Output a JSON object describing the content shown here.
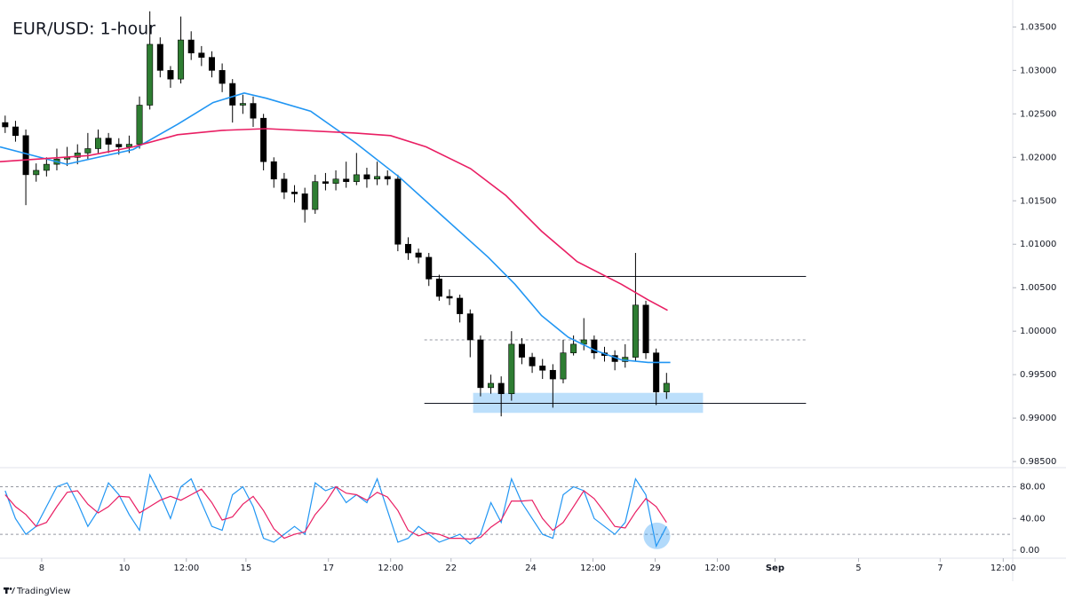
{
  "chart_data": [
    {
      "type": "candlestick",
      "title": "EUR/USD: 1-hour",
      "x": [
        3,
        9,
        15,
        21,
        27,
        33,
        39,
        45,
        51,
        57,
        63,
        69,
        75,
        81,
        87,
        93,
        99,
        105,
        111,
        117,
        123,
        129,
        135,
        141,
        147,
        153,
        159,
        165,
        171,
        177,
        183,
        189,
        195,
        201,
        207,
        213,
        219,
        225,
        231,
        237,
        243,
        249,
        255,
        261,
        267,
        273,
        279,
        285,
        291,
        297,
        303,
        309,
        315,
        321,
        327,
        333,
        339,
        345,
        351,
        357,
        363,
        369,
        375,
        381,
        387
      ],
      "open": [
        1.024,
        1.0235,
        1.0225,
        1.018,
        1.0185,
        1.0192,
        1.0198,
        1.02,
        1.0205,
        1.021,
        1.0222,
        1.0215,
        1.0212,
        1.0215,
        1.026,
        1.033,
        1.03,
        1.029,
        1.0335,
        1.032,
        1.0315,
        1.03,
        1.0285,
        1.026,
        1.0262,
        1.0245,
        1.0195,
        1.0175,
        1.016,
        1.0158,
        1.014,
        1.0172,
        1.017,
        1.0175,
        1.0172,
        1.018,
        1.0175,
        1.0178,
        1.0175,
        1.01,
        1.009,
        1.0085,
        1.006,
        1.004,
        1.0038,
        1.002,
        0.999,
        0.9935,
        0.994,
        0.9928,
        0.9985,
        0.997,
        0.996,
        0.9955,
        0.9945,
        0.9975,
        0.9985,
        0.999,
        0.9975,
        0.9972,
        0.9965,
        0.997,
        1.003,
        0.9975,
        0.993
      ],
      "high": [
        1.0248,
        1.0242,
        1.0232,
        1.0193,
        1.02,
        1.021,
        1.0212,
        1.0215,
        1.0228,
        1.0232,
        1.0228,
        1.0222,
        1.0225,
        1.027,
        1.0368,
        1.0338,
        1.0305,
        1.0362,
        1.0345,
        1.0328,
        1.0322,
        1.0308,
        1.029,
        1.0272,
        1.027,
        1.025,
        1.02,
        1.0182,
        1.0168,
        1.0165,
        1.018,
        1.0182,
        1.0185,
        1.0195,
        1.0205,
        1.0188,
        1.0195,
        1.0185,
        1.018,
        1.0108,
        1.0095,
        1.009,
        1.0065,
        1.0048,
        1.0042,
        1.0025,
        0.9995,
        0.995,
        0.9948,
        1.0,
        0.9992,
        0.9975,
        0.9968,
        0.9962,
        0.999,
        0.9995,
        1.0015,
        0.9995,
        0.9982,
        0.9978,
        0.9985,
        1.009,
        1.0035,
        0.998,
        0.9952
      ],
      "low": [
        1.0228,
        1.0218,
        1.0145,
        1.0172,
        1.0178,
        1.0185,
        1.019,
        1.0192,
        1.0198,
        1.0205,
        1.0205,
        1.0203,
        1.0205,
        1.021,
        1.0255,
        1.0292,
        1.028,
        1.0285,
        1.0312,
        1.0305,
        1.0292,
        1.0275,
        1.024,
        1.025,
        1.0235,
        1.0185,
        1.0165,
        1.0152,
        1.0148,
        1.0125,
        1.0135,
        1.0162,
        1.0162,
        1.0165,
        1.0168,
        1.0165,
        1.0168,
        1.0168,
        1.0092,
        1.0082,
        1.0078,
        1.0052,
        1.0035,
        1.003,
        1.001,
        0.997,
        0.9925,
        0.9928,
        0.9902,
        0.992,
        0.9962,
        0.9952,
        0.9945,
        0.9912,
        0.994,
        0.9972,
        0.9978,
        0.9968,
        0.9965,
        0.9955,
        0.9958,
        0.9965,
        0.9968,
        0.9915,
        0.9922
      ],
      "close": [
        1.0235,
        1.0225,
        1.018,
        1.0185,
        1.0192,
        1.0198,
        1.02,
        1.0205,
        1.021,
        1.0222,
        1.0215,
        1.0212,
        1.0215,
        1.026,
        1.033,
        1.03,
        1.029,
        1.0335,
        1.032,
        1.0315,
        1.03,
        1.0285,
        1.026,
        1.0262,
        1.0245,
        1.0195,
        1.0175,
        1.016,
        1.0158,
        1.014,
        1.0172,
        1.017,
        1.0175,
        1.0172,
        1.018,
        1.0175,
        1.0178,
        1.0175,
        1.01,
        1.009,
        1.0085,
        1.006,
        1.004,
        1.0038,
        1.002,
        0.999,
        0.9935,
        0.994,
        0.9928,
        0.9985,
        0.997,
        0.996,
        0.9955,
        0.9945,
        0.9975,
        0.9985,
        0.999,
        0.9975,
        0.9972,
        0.9965,
        0.997,
        1.003,
        0.9975,
        0.993,
        0.994
      ],
      "up_color": "#2e7d32",
      "down_color": "#000000",
      "ma": [
        {
          "color": "#2196f3",
          "x": [
            0,
            38.7,
            77.3,
            103.1,
            123.7,
            141.8,
            154.6,
            180.4,
            206.2,
            232,
            257.7,
            283.5,
            299,
            314.4,
            329.9,
            345.4,
            360.8,
            376.3,
            389.2
          ],
          "values": [
            1.0212,
            1.0192,
            1.0209,
            1.0238,
            1.0263,
            1.0274,
            1.0268,
            1.0253,
            1.0217,
            1.0177,
            1.0131,
            1.0085,
            1.0054,
            1.0018,
            0.9993,
            0.9978,
            0.9967,
            0.9964,
            0.9964
          ]
        },
        {
          "color": "#e91e63",
          "x": [
            0,
            51.5,
            77.3,
            103.1,
            128.9,
            154.6,
            206.2,
            226.8,
            247.4,
            273.2,
            293.8,
            314.4,
            335.1,
            360.8,
            376.3,
            387.6
          ],
          "values": [
            1.0195,
            1.0202,
            1.0212,
            1.0226,
            1.0231,
            1.0233,
            1.0228,
            1.0225,
            1.0212,
            1.0187,
            1.0156,
            1.0115,
            1.008,
            1.0054,
            1.0036,
            1.0024
          ]
        }
      ],
      "levels": [
        {
          "value": 1.0063,
          "x": [
            247.4,
            468
          ],
          "style": "solid"
        },
        {
          "value": 0.999,
          "x": [
            246.4,
            468
          ],
          "style": "dashed"
        },
        {
          "value": 0.9917,
          "x": [
            246.4,
            468
          ],
          "style": "solid"
        }
      ],
      "zone": {
        "y": [
          0.9906,
          0.9929
        ],
        "x": [
          274.7,
          408.2
        ],
        "color": "#90caf9"
      },
      "xlim": [
        0,
        588
      ],
      "ylim": [
        0.9845,
        1.0381
      ],
      "yticks": [
        {
          "value": 1.035,
          "label": "1.03500"
        },
        {
          "value": 1.03,
          "label": "1.03000"
        },
        {
          "value": 1.025,
          "label": "1.02500"
        },
        {
          "value": 1.02,
          "label": "1.02000"
        },
        {
          "value": 1.015,
          "label": "1.01500"
        },
        {
          "value": 1.01,
          "label": "1.01000"
        },
        {
          "value": 1.005,
          "label": "1.00500"
        },
        {
          "value": 1.0,
          "label": "1.00000"
        },
        {
          "value": 0.995,
          "label": "0.99500"
        },
        {
          "value": 0.99,
          "label": "0.99000"
        },
        {
          "value": 0.985,
          "label": "0.98500"
        }
      ],
      "xticks": [
        {
          "value": 24.2,
          "label": "8"
        },
        {
          "value": 72.2,
          "label": "10"
        },
        {
          "value": 108.2,
          "label": "12:00"
        },
        {
          "value": 142.8,
          "label": "15"
        },
        {
          "value": 190.7,
          "label": "17"
        },
        {
          "value": 226.8,
          "label": "12:00"
        },
        {
          "value": 261.9,
          "label": "22"
        },
        {
          "value": 308.2,
          "label": "24"
        },
        {
          "value": 344.3,
          "label": "12:00"
        },
        {
          "value": 380.4,
          "label": "29"
        },
        {
          "value": 416.5,
          "label": "12:00"
        },
        {
          "value": 450,
          "label": "Sep"
        },
        {
          "value": 498.5,
          "label": "5"
        },
        {
          "value": 545.9,
          "label": "7"
        },
        {
          "value": 582.5,
          "label": "12:00"
        }
      ],
      "source": "TradingView"
    },
    {
      "type": "line",
      "x": [
        3,
        9,
        15,
        21,
        27,
        33,
        39,
        45,
        51,
        57,
        63,
        69,
        75,
        81,
        87,
        93,
        99,
        105,
        111,
        117,
        123,
        129,
        135,
        141,
        147,
        153,
        159,
        165,
        171,
        177,
        183,
        189,
        195,
        201,
        207,
        213,
        219,
        225,
        231,
        237,
        243,
        249,
        255,
        261,
        267,
        273,
        279,
        285,
        291,
        297,
        303,
        309,
        315,
        321,
        327,
        333,
        339,
        345,
        351,
        357,
        363,
        369,
        375,
        381,
        387
      ],
      "series": [
        {
          "color": "#2196f3",
          "values": [
            75,
            40,
            20,
            30,
            55,
            80,
            85,
            60,
            30,
            50,
            85,
            70,
            45,
            25,
            95,
            70,
            40,
            80,
            90,
            60,
            30,
            25,
            70,
            80,
            55,
            15,
            10,
            20,
            30,
            20,
            85,
            75,
            80,
            60,
            70,
            60,
            90,
            50,
            10,
            15,
            30,
            20,
            10,
            15,
            20,
            8,
            20,
            60,
            35,
            90,
            60,
            40,
            20,
            15,
            70,
            80,
            75,
            40,
            30,
            20,
            35,
            90,
            70,
            5,
            30
          ]
        },
        {
          "color": "#e91e63",
          "values": [
            70,
            55,
            45,
            30,
            35,
            55,
            73,
            75,
            58,
            47,
            55,
            68,
            67,
            47,
            55,
            63,
            68,
            63,
            70,
            77,
            60,
            38,
            42,
            58,
            68,
            50,
            27,
            15,
            20,
            23,
            45,
            60,
            80,
            72,
            70,
            63,
            73,
            67,
            50,
            25,
            18,
            22,
            20,
            15,
            15,
            14,
            16,
            29,
            38,
            62,
            62,
            63,
            40,
            25,
            35,
            55,
            75,
            65,
            48,
            30,
            28,
            48,
            65,
            55,
            35
          ]
        }
      ],
      "levels": [
        80,
        20
      ],
      "highlight": {
        "x": 381.4,
        "y": 18,
        "color": "#2196f3"
      },
      "xlim": [
        0,
        588
      ],
      "ylim": [
        -9,
        103
      ],
      "yticks": [
        {
          "value": 80,
          "label": "80.00"
        },
        {
          "value": 40,
          "label": "40.00"
        },
        {
          "value": 0,
          "label": "0.00"
        }
      ]
    }
  ]
}
